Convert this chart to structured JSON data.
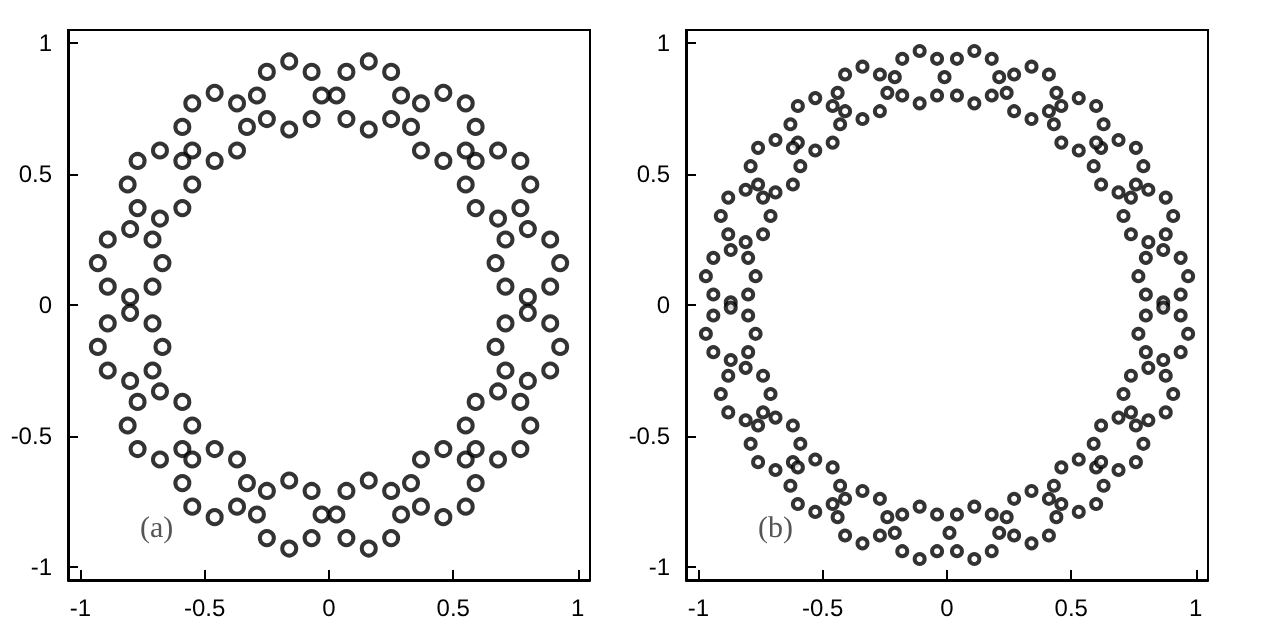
{
  "chart_data": [
    {
      "type": "scatter",
      "marker": "circle",
      "grid": false,
      "xlim": [
        -1.05,
        1.05
      ],
      "ylim": [
        -1.05,
        1.05
      ],
      "xticks": [
        -1,
        -0.5,
        0,
        0.5,
        1
      ],
      "yticks": [
        -1,
        -0.5,
        0,
        0.5,
        1
      ],
      "annotations": [
        "(a)"
      ],
      "series": [
        {
          "color": "#000000",
          "x": [
            0.93,
            0.89,
            0.8,
            0.71,
            0.67,
            0.71,
            0.8,
            0.89
          ],
          "values": [
            0.16,
            0.25,
            0.29,
            0.25,
            0.16,
            0.07,
            0.03,
            0.07
          ]
        },
        {
          "color": "#000000",
          "x": [
            0.81,
            0.77,
            0.68,
            0.59,
            0.55,
            0.59,
            0.68,
            0.77
          ],
          "values": [
            0.46,
            0.55,
            0.59,
            0.55,
            0.46,
            0.37,
            0.33,
            0.37
          ]
        },
        {
          "color": "#000000",
          "x": [
            0.59,
            0.55,
            0.46,
            0.37,
            0.33,
            0.37,
            0.46,
            0.55
          ],
          "values": [
            0.68,
            0.77,
            0.81,
            0.77,
            0.68,
            0.59,
            0.55,
            0.59
          ]
        },
        {
          "color": "#000000",
          "x": [
            0.29,
            0.25,
            0.16,
            0.07,
            0.03,
            0.07,
            0.16,
            0.25
          ],
          "values": [
            0.8,
            0.89,
            0.93,
            0.89,
            0.8,
            0.71,
            0.67,
            0.71
          ]
        },
        {
          "color": "#000000",
          "x": [
            -0.03,
            -0.07,
            -0.16,
            -0.25,
            -0.29,
            -0.25,
            -0.16,
            -0.07
          ],
          "values": [
            0.8,
            0.89,
            0.93,
            0.89,
            0.8,
            0.71,
            0.67,
            0.71
          ]
        },
        {
          "color": "#000000",
          "x": [
            -0.33,
            -0.37,
            -0.46,
            -0.55,
            -0.59,
            -0.55,
            -0.46,
            -0.37
          ],
          "values": [
            0.68,
            0.77,
            0.81,
            0.77,
            0.68,
            0.59,
            0.55,
            0.59
          ]
        },
        {
          "color": "#000000",
          "x": [
            -0.55,
            -0.59,
            -0.68,
            -0.77,
            -0.81,
            -0.77,
            -0.68,
            -0.59
          ],
          "values": [
            0.46,
            0.55,
            0.59,
            0.55,
            0.46,
            0.37,
            0.33,
            0.37
          ]
        },
        {
          "color": "#000000",
          "x": [
            -0.67,
            -0.71,
            -0.8,
            -0.89,
            -0.93,
            -0.89,
            -0.8,
            -0.71
          ],
          "values": [
            0.16,
            0.25,
            0.29,
            0.25,
            0.16,
            0.07,
            0.03,
            0.07
          ]
        },
        {
          "color": "#000000",
          "x": [
            -0.67,
            -0.71,
            -0.8,
            -0.89,
            -0.93,
            -0.89,
            -0.8,
            -0.71
          ],
          "values": [
            -0.16,
            -0.07,
            -0.03,
            -0.07,
            -0.16,
            -0.25,
            -0.29,
            -0.25
          ]
        },
        {
          "color": "#000000",
          "x": [
            -0.55,
            -0.59,
            -0.68,
            -0.77,
            -0.81,
            -0.77,
            -0.68,
            -0.59
          ],
          "values": [
            -0.46,
            -0.37,
            -0.33,
            -0.37,
            -0.46,
            -0.55,
            -0.59,
            -0.55
          ]
        },
        {
          "color": "#000000",
          "x": [
            -0.33,
            -0.37,
            -0.46,
            -0.55,
            -0.59,
            -0.55,
            -0.46,
            -0.37
          ],
          "values": [
            -0.68,
            -0.59,
            -0.55,
            -0.59,
            -0.68,
            -0.77,
            -0.81,
            -0.77
          ]
        },
        {
          "color": "#000000",
          "x": [
            -0.03,
            -0.07,
            -0.16,
            -0.25,
            -0.29,
            -0.25,
            -0.16,
            -0.07
          ],
          "values": [
            -0.8,
            -0.71,
            -0.67,
            -0.71,
            -0.8,
            -0.89,
            -0.93,
            -0.89
          ]
        },
        {
          "color": "#000000",
          "x": [
            0.29,
            0.25,
            0.16,
            0.07,
            0.03,
            0.07,
            0.16,
            0.25
          ],
          "values": [
            -0.8,
            -0.71,
            -0.67,
            -0.71,
            -0.8,
            -0.89,
            -0.93,
            -0.89
          ]
        },
        {
          "color": "#000000",
          "x": [
            0.59,
            0.55,
            0.46,
            0.37,
            0.33,
            0.37,
            0.46,
            0.55
          ],
          "values": [
            -0.68,
            -0.59,
            -0.55,
            -0.59,
            -0.68,
            -0.77,
            -0.81,
            -0.77
          ]
        },
        {
          "color": "#000000",
          "x": [
            0.81,
            0.77,
            0.68,
            0.59,
            0.55,
            0.59,
            0.68,
            0.77
          ],
          "values": [
            -0.46,
            -0.37,
            -0.33,
            -0.37,
            -0.46,
            -0.55,
            -0.59,
            -0.55
          ]
        },
        {
          "color": "#000000",
          "x": [
            0.93,
            0.89,
            0.8,
            0.71,
            0.67,
            0.71,
            0.8,
            0.89
          ],
          "values": [
            -0.16,
            -0.07,
            -0.03,
            -0.07,
            -0.16,
            -0.25,
            -0.29,
            -0.25
          ]
        }
      ]
    },
    {
      "type": "scatter",
      "marker": "circle",
      "grid": false,
      "xlim": [
        -1.05,
        1.05
      ],
      "ylim": [
        -1.05,
        1.05
      ],
      "xticks": [
        -1,
        -0.5,
        0,
        0.5,
        1
      ],
      "yticks": [
        -1,
        -0.5,
        0,
        0.5,
        1
      ],
      "annotations": [
        "(b)"
      ],
      "series": [
        {
          "color": "#000000",
          "x": [
            0.97,
            0.94,
            0.87,
            0.8,
            0.77,
            0.8,
            0.87,
            0.94
          ],
          "values": [
            0.11,
            0.18,
            0.21,
            0.18,
            0.11,
            0.04,
            0.01,
            0.04
          ]
        },
        {
          "color": "#000000",
          "x": [
            0.91,
            0.88,
            0.81,
            0.74,
            0.71,
            0.74,
            0.81,
            0.88
          ],
          "values": [
            0.34,
            0.41,
            0.44,
            0.41,
            0.34,
            0.27,
            0.24,
            0.27
          ]
        },
        {
          "color": "#000000",
          "x": [
            0.79,
            0.76,
            0.69,
            0.62,
            0.59,
            0.62,
            0.69,
            0.76
          ],
          "values": [
            0.53,
            0.6,
            0.63,
            0.6,
            0.53,
            0.46,
            0.43,
            0.46
          ]
        },
        {
          "color": "#000000",
          "x": [
            0.63,
            0.6,
            0.53,
            0.46,
            0.43,
            0.46,
            0.53,
            0.6
          ],
          "values": [
            0.69,
            0.76,
            0.79,
            0.76,
            0.69,
            0.62,
            0.59,
            0.62
          ]
        },
        {
          "color": "#000000",
          "x": [
            0.44,
            0.41,
            0.34,
            0.27,
            0.24,
            0.27,
            0.34,
            0.41
          ],
          "values": [
            0.81,
            0.88,
            0.91,
            0.88,
            0.81,
            0.74,
            0.71,
            0.74
          ]
        },
        {
          "color": "#000000",
          "x": [
            0.21,
            0.18,
            0.11,
            0.04,
            0.04,
            0.11,
            0.18
          ],
          "values": [
            0.87,
            0.94,
            0.97,
            0.94,
            0.8,
            0.77,
            0.8
          ]
        },
        {
          "color": "#000000",
          "x": [
            -0.01,
            -0.04,
            -0.11,
            -0.18,
            -0.21,
            -0.18,
            -0.11,
            -0.04
          ],
          "values": [
            0.87,
            0.94,
            0.97,
            0.94,
            0.87,
            0.8,
            0.77,
            0.8
          ]
        },
        {
          "color": "#000000",
          "x": [
            -0.24,
            -0.27,
            -0.34,
            -0.41,
            -0.44,
            -0.41,
            -0.34,
            -0.27
          ],
          "values": [
            0.81,
            0.88,
            0.91,
            0.88,
            0.81,
            0.74,
            0.71,
            0.74
          ]
        },
        {
          "color": "#000000",
          "x": [
            -0.43,
            -0.46,
            -0.53,
            -0.6,
            -0.63,
            -0.6,
            -0.53,
            -0.46
          ],
          "values": [
            0.69,
            0.76,
            0.79,
            0.76,
            0.69,
            0.62,
            0.59,
            0.62
          ]
        },
        {
          "color": "#000000",
          "x": [
            -0.59,
            -0.62,
            -0.69,
            -0.76,
            -0.79,
            -0.76,
            -0.69,
            -0.62
          ],
          "values": [
            0.53,
            0.6,
            0.63,
            0.6,
            0.53,
            0.46,
            0.43,
            0.46
          ]
        },
        {
          "color": "#000000",
          "x": [
            -0.71,
            -0.74,
            -0.81,
            -0.88,
            -0.91,
            -0.88,
            -0.81,
            -0.74
          ],
          "values": [
            0.34,
            0.41,
            0.44,
            0.41,
            0.34,
            0.27,
            0.24,
            0.27
          ]
        },
        {
          "color": "#000000",
          "x": [
            -0.77,
            -0.8,
            -0.87,
            -0.94,
            -0.97,
            -0.94,
            -0.87,
            -0.8
          ],
          "values": [
            0.11,
            0.18,
            0.21,
            0.18,
            0.11,
            0.04,
            0.01,
            0.04
          ]
        },
        {
          "color": "#000000",
          "x": [
            -0.77,
            -0.8,
            -0.87,
            -0.94,
            -0.97,
            -0.94,
            -0.87,
            -0.8
          ],
          "values": [
            -0.11,
            -0.04,
            -0.01,
            -0.04,
            -0.11,
            -0.18,
            -0.21,
            -0.18
          ]
        },
        {
          "color": "#000000",
          "x": [
            -0.71,
            -0.74,
            -0.81,
            -0.88,
            -0.91,
            -0.88,
            -0.81,
            -0.74
          ],
          "values": [
            -0.34,
            -0.27,
            -0.24,
            -0.27,
            -0.34,
            -0.41,
            -0.44,
            -0.41
          ]
        },
        {
          "color": "#000000",
          "x": [
            -0.59,
            -0.62,
            -0.69,
            -0.76,
            -0.79,
            -0.76,
            -0.69,
            -0.62
          ],
          "values": [
            -0.53,
            -0.46,
            -0.43,
            -0.46,
            -0.53,
            -0.6,
            -0.63,
            -0.6
          ]
        },
        {
          "color": "#000000",
          "x": [
            -0.43,
            -0.46,
            -0.53,
            -0.6,
            -0.63,
            -0.6,
            -0.53,
            -0.46
          ],
          "values": [
            -0.69,
            -0.62,
            -0.59,
            -0.62,
            -0.69,
            -0.76,
            -0.79,
            -0.76
          ]
        },
        {
          "color": "#000000",
          "x": [
            -0.24,
            -0.27,
            -0.34,
            -0.41,
            -0.44,
            -0.41,
            -0.34,
            -0.27
          ],
          "values": [
            -0.81,
            -0.74,
            -0.71,
            -0.74,
            -0.81,
            -0.88,
            -0.91,
            -0.88
          ]
        },
        {
          "color": "#000000",
          "x": [
            -0.04,
            -0.11,
            -0.18,
            -0.21,
            -0.18,
            -0.11,
            -0.04
          ],
          "values": [
            -0.8,
            -0.77,
            -0.8,
            -0.87,
            -0.94,
            -0.97,
            -0.94
          ]
        },
        {
          "color": "#000000",
          "x": [
            0.21,
            0.18,
            0.11,
            0.04,
            0.01,
            0.04,
            0.11,
            0.18
          ],
          "values": [
            -0.87,
            -0.8,
            -0.77,
            -0.8,
            -0.87,
            -0.94,
            -0.97,
            -0.94
          ]
        },
        {
          "color": "#000000",
          "x": [
            0.44,
            0.41,
            0.34,
            0.27,
            0.24,
            0.27,
            0.34,
            0.41
          ],
          "values": [
            -0.81,
            -0.74,
            -0.71,
            -0.74,
            -0.81,
            -0.88,
            -0.91,
            -0.88
          ]
        },
        {
          "color": "#000000",
          "x": [
            0.63,
            0.6,
            0.53,
            0.46,
            0.43,
            0.46,
            0.53,
            0.6
          ],
          "values": [
            -0.69,
            -0.62,
            -0.59,
            -0.62,
            -0.69,
            -0.76,
            -0.79,
            -0.76
          ]
        },
        {
          "color": "#000000",
          "x": [
            0.79,
            0.76,
            0.69,
            0.62,
            0.59,
            0.62,
            0.69,
            0.76
          ],
          "values": [
            -0.53,
            -0.46,
            -0.43,
            -0.46,
            -0.53,
            -0.6,
            -0.63,
            -0.6
          ]
        },
        {
          "color": "#000000",
          "x": [
            0.91,
            0.88,
            0.81,
            0.74,
            0.71,
            0.74,
            0.81,
            0.88
          ],
          "values": [
            -0.34,
            -0.27,
            -0.24,
            -0.27,
            -0.34,
            -0.41,
            -0.44,
            -0.41
          ]
        },
        {
          "color": "#000000",
          "x": [
            0.97,
            0.94,
            0.87,
            0.8,
            0.77,
            0.8,
            0.87,
            0.94
          ],
          "values": [
            -0.11,
            -0.04,
            -0.01,
            -0.04,
            -0.11,
            -0.18,
            -0.21,
            -0.18
          ]
        }
      ]
    }
  ]
}
